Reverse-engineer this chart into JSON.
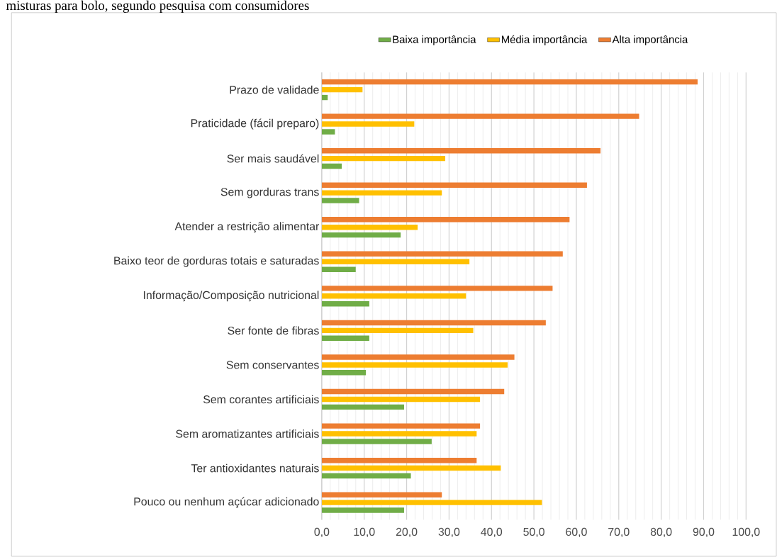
{
  "chart_data": {
    "type": "bar",
    "orientation": "horizontal",
    "title": "misturas para bolo, segundo pesquisa com consumidores",
    "categories": [
      "Prazo de validade",
      "Praticidade (fácil preparo)",
      "Ser mais saudável",
      "Sem gorduras trans",
      "Atender a restrição alimentar",
      "Baixo teor de gorduras totais e saturadas",
      "Informação/Composição nutricional",
      "Ser fonte de fibras",
      "Sem conservantes",
      "Sem corantes artificiais",
      "Sem aromatizantes artificiais",
      "Ter antioxidantes naturais",
      "Pouco ou nenhum açúcar adicionado"
    ],
    "series": [
      {
        "name": "Baixa importância",
        "color": "#70ad47",
        "values": [
          1.4,
          3.1,
          4.7,
          8.8,
          18.6,
          8.0,
          11.2,
          11.2,
          10.4,
          19.4,
          25.9,
          21.0,
          19.4
        ]
      },
      {
        "name": "Média importância",
        "color": "#ffc000",
        "values": [
          9.6,
          21.8,
          29.1,
          28.3,
          22.6,
          34.8,
          34.0,
          35.7,
          43.8,
          37.3,
          36.5,
          42.2,
          51.9
        ]
      },
      {
        "name": "Alta importância",
        "color": "#ed7d31",
        "values": [
          88.6,
          74.8,
          65.7,
          62.5,
          58.4,
          56.8,
          54.4,
          52.8,
          45.4,
          43.0,
          37.3,
          36.5,
          28.3
        ]
      }
    ],
    "xlim": [
      0,
      100
    ],
    "xticks": [
      {
        "value": 0,
        "label": "0,0"
      },
      {
        "value": 10,
        "label": "10,0"
      },
      {
        "value": 20,
        "label": "20,0"
      },
      {
        "value": 30,
        "label": "30,0"
      },
      {
        "value": 40,
        "label": "40,0"
      },
      {
        "value": 50,
        "label": "50,0"
      },
      {
        "value": 60,
        "label": "60,0"
      },
      {
        "value": 70,
        "label": "70,0"
      },
      {
        "value": 80,
        "label": "80,0"
      },
      {
        "value": 90,
        "label": "90,0"
      },
      {
        "value": 100,
        "label": "100,0"
      }
    ],
    "grid": "x",
    "legend": "top"
  }
}
